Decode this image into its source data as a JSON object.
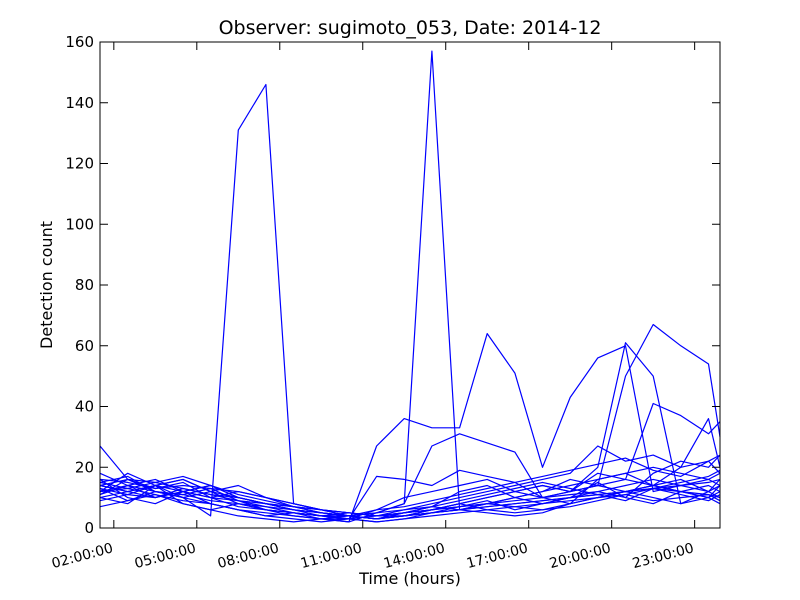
{
  "chart_data": {
    "type": "line",
    "title": "Observer: sugimoto_053, Date: 2014-12",
    "xlabel": "Time (hours)",
    "ylabel": "Detection count",
    "xlim": [
      "01:30:00",
      "23:55:00"
    ],
    "ylim": [
      0,
      160
    ],
    "y_ticks": [
      "0",
      "20",
      "40",
      "60",
      "80",
      "100",
      "120",
      "140",
      "160"
    ],
    "x_tick_labels": [
      "02:00:00",
      "05:00:00",
      "08:00:00",
      "11:00:00",
      "14:00:00",
      "17:00:00",
      "20:00:00",
      "23:00:00"
    ],
    "grid": false,
    "line_color": "#0000ff",
    "x_times": [
      "01:30",
      "02:30",
      "03:30",
      "04:30",
      "05:30",
      "06:30",
      "07:30",
      "08:30",
      "09:30",
      "10:30",
      "11:30",
      "12:30",
      "13:30",
      "14:30",
      "15:30",
      "16:30",
      "17:30",
      "18:30",
      "19:30",
      "20:30",
      "21:30",
      "22:30",
      "23:30",
      "23:55"
    ],
    "series": [
      {
        "values": [
          27,
          16,
          12,
          10,
          4,
          131,
          146,
          8,
          6,
          4,
          3,
          4,
          6,
          8,
          10,
          12,
          14,
          12,
          18,
          16,
          14,
          12,
          14,
          12
        ]
      },
      {
        "values": [
          14,
          12,
          14,
          8,
          6,
          4,
          3,
          2,
          3,
          2,
          5,
          8,
          157,
          6,
          8,
          10,
          12,
          14,
          16,
          18,
          20,
          18,
          16,
          14
        ]
      },
      {
        "values": [
          12,
          14,
          10,
          12,
          8,
          6,
          4,
          5,
          3,
          2,
          27,
          36,
          33,
          33,
          64,
          51,
          20,
          43,
          56,
          60,
          12,
          14,
          16,
          18
        ]
      },
      {
        "values": [
          10,
          12,
          14,
          16,
          12,
          8,
          6,
          4,
          3,
          4,
          5,
          8,
          27,
          31,
          28,
          25,
          10,
          12,
          14,
          50,
          67,
          60,
          54,
          30
        ]
      },
      {
        "values": [
          16,
          10,
          8,
          12,
          14,
          10,
          8,
          6,
          4,
          3,
          6,
          10,
          12,
          14,
          16,
          12,
          14,
          12,
          20,
          61,
          50,
          8,
          12,
          14
        ]
      },
      {
        "values": [
          12,
          18,
          14,
          10,
          8,
          6,
          4,
          3,
          2,
          3,
          17,
          16,
          14,
          19,
          17,
          15,
          10,
          12,
          14,
          16,
          41,
          37,
          31,
          35
        ]
      },
      {
        "values": [
          15,
          13,
          11,
          9,
          8,
          6,
          5,
          4,
          3,
          3,
          4,
          6,
          8,
          10,
          12,
          14,
          16,
          18,
          27,
          22,
          24,
          20,
          36,
          20
        ]
      },
      {
        "values": [
          11,
          16,
          13,
          15,
          10,
          7,
          6,
          5,
          4,
          4,
          6,
          7,
          9,
          11,
          13,
          15,
          17,
          19,
          21,
          23,
          19,
          17,
          22,
          24
        ]
      },
      {
        "values": [
          13,
          9,
          12,
          11,
          9,
          8,
          7,
          6,
          5,
          4,
          5,
          6,
          7,
          12,
          14,
          10,
          12,
          16,
          14,
          12,
          10,
          8,
          10,
          12
        ]
      },
      {
        "values": [
          9,
          11,
          10,
          12,
          14,
          10,
          8,
          7,
          6,
          5,
          4,
          5,
          6,
          7,
          8,
          9,
          10,
          11,
          12,
          10,
          8,
          12,
          10,
          8
        ]
      },
      {
        "values": [
          18,
          14,
          16,
          12,
          10,
          12,
          10,
          8,
          6,
          4,
          3,
          5,
          7,
          9,
          11,
          13,
          15,
          13,
          11,
          9,
          13,
          15,
          17,
          19
        ]
      },
      {
        "values": [
          14,
          12,
          10,
          13,
          11,
          9,
          7,
          5,
          4,
          3,
          2,
          3,
          5,
          7,
          9,
          6,
          8,
          10,
          12,
          14,
          16,
          14,
          12,
          16
        ]
      },
      {
        "values": [
          10,
          8,
          14,
          16,
          12,
          10,
          8,
          6,
          5,
          4,
          3,
          4,
          6,
          8,
          10,
          12,
          10,
          8,
          16,
          18,
          14,
          20,
          22,
          18
        ]
      },
      {
        "values": [
          16,
          15,
          13,
          14,
          13,
          12,
          10,
          8,
          6,
          5,
          4,
          4,
          5,
          6,
          7,
          8,
          9,
          10,
          11,
          12,
          13,
          14,
          15,
          16
        ]
      },
      {
        "values": [
          7,
          9,
          11,
          8,
          6,
          8,
          6,
          5,
          4,
          3,
          2,
          3,
          4,
          5,
          6,
          7,
          8,
          9,
          10,
          11,
          9,
          10,
          11,
          9
        ]
      },
      {
        "values": [
          12,
          13,
          15,
          17,
          14,
          11,
          9,
          7,
          5,
          4,
          3,
          4,
          5,
          6,
          5,
          4,
          5,
          8,
          10,
          12,
          14,
          16,
          12,
          10
        ]
      },
      {
        "values": [
          15,
          17,
          12,
          10,
          12,
          14,
          10,
          7,
          5,
          4,
          3,
          5,
          7,
          6,
          8,
          10,
          8,
          10,
          15,
          10,
          18,
          22,
          20,
          24
        ]
      },
      {
        "values": [
          13,
          11,
          14,
          12,
          10,
          9,
          8,
          7,
          6,
          5,
          4,
          5,
          6,
          7,
          8,
          7,
          6,
          8,
          10,
          12,
          14,
          12,
          10,
          14
        ]
      },
      {
        "values": [
          11,
          14,
          12,
          11,
          13,
          9,
          6,
          5,
          4,
          5,
          4,
          5,
          6,
          8,
          6,
          5,
          6,
          7,
          9,
          11,
          13,
          11,
          9,
          11
        ]
      },
      {
        "values": [
          14,
          16,
          15,
          13,
          11,
          10,
          8,
          6,
          5,
          4,
          3,
          4,
          5,
          6,
          7,
          8,
          9,
          10,
          11,
          12,
          13,
          12,
          11,
          10
        ]
      }
    ]
  }
}
